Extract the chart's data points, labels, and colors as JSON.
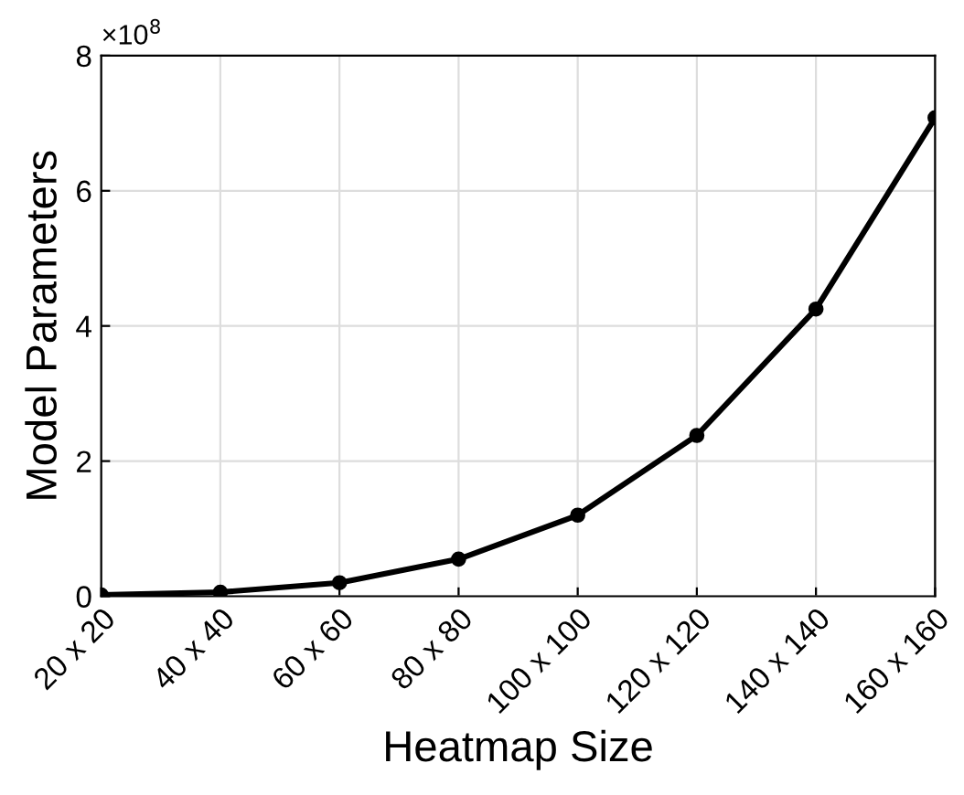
{
  "chart_data": {
    "type": "line",
    "xlabel": "Heatmap Size",
    "ylabel": "Model Parameters",
    "annotations": [
      "×10$^{8}$"
    ],
    "categories": [
      "20 x 20",
      "40 x 40",
      "60 x 60",
      "80 x 80",
      "100 x 100",
      "120 x 120",
      "140 x 140",
      "160 x 160"
    ],
    "series": [
      {
        "color": "#000000",
        "values": [
          0.02,
          0.06,
          0.2,
          0.55,
          1.2,
          2.38,
          4.25,
          7.08
        ]
      }
    ],
    "ylim": [
      0,
      8
    ],
    "yticks": [
      0,
      2,
      4,
      6,
      8
    ],
    "grid": true,
    "marker": "circle",
    "line_style": "solid",
    "legend": false
  }
}
